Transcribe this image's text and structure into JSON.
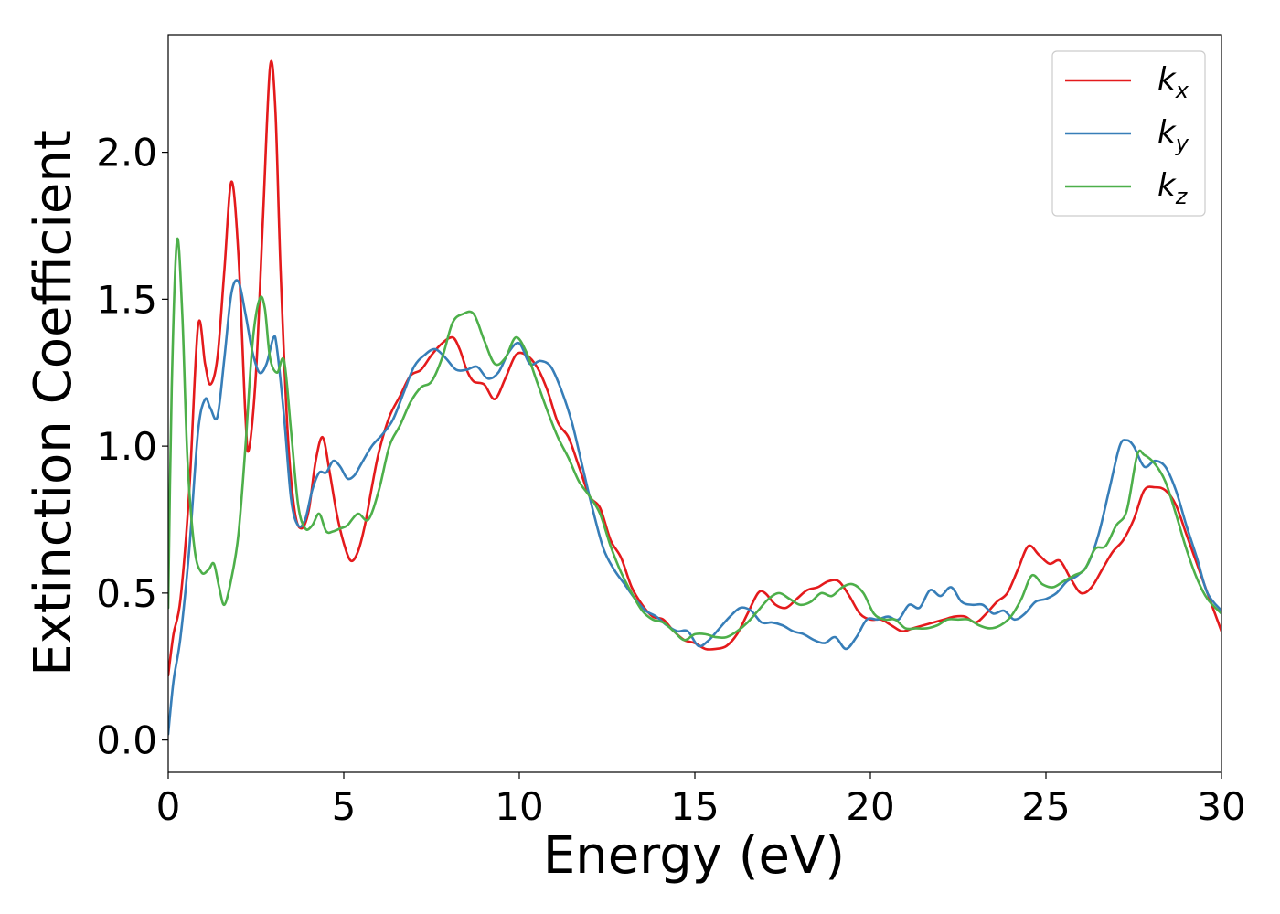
{
  "chart_data": {
    "type": "line",
    "title": "",
    "xlabel": "Energy (eV)",
    "ylabel": "Extinction Coefficient",
    "xlim": [
      0,
      30
    ],
    "ylim": [
      -0.11,
      2.4
    ],
    "xticks": [
      0,
      5,
      10,
      15,
      20,
      25,
      30
    ],
    "xtick_labels": [
      "0",
      "5",
      "10",
      "15",
      "20",
      "25",
      "30"
    ],
    "yticks": [
      0.0,
      0.5,
      1.0,
      1.5,
      2.0
    ],
    "ytick_labels": [
      "0.0",
      "0.5",
      "1.0",
      "1.5",
      "2.0"
    ],
    "grid": false,
    "legend_position": "top-right",
    "series": [
      {
        "name": "k",
        "subscript": "x",
        "color": "#e41a1c",
        "x": [
          0,
          0.15,
          0.35,
          0.6,
          0.85,
          1.05,
          1.2,
          1.4,
          1.6,
          1.8,
          2.0,
          2.2,
          2.3,
          2.5,
          2.7,
          2.9,
          3.05,
          3.2,
          3.4,
          3.6,
          3.8,
          4.0,
          4.2,
          4.4,
          4.6,
          4.8,
          5.0,
          5.2,
          5.4,
          5.6,
          5.8,
          6.0,
          6.3,
          6.6,
          6.9,
          7.2,
          7.5,
          7.8,
          8.1,
          8.3,
          8.5,
          8.7,
          9.0,
          9.3,
          9.6,
          9.9,
          10.2,
          10.5,
          10.8,
          11.1,
          11.4,
          11.7,
          12.0,
          12.3,
          12.6,
          12.9,
          13.2,
          13.5,
          13.8,
          14.1,
          14.4,
          14.7,
          15.0,
          15.3,
          15.6,
          15.9,
          16.2,
          16.5,
          16.8,
          17.0,
          17.3,
          17.6,
          17.9,
          18.2,
          18.5,
          18.8,
          19.1,
          19.4,
          19.7,
          20.0,
          20.3,
          20.6,
          20.9,
          21.2,
          21.5,
          21.8,
          22.1,
          22.4,
          22.7,
          23.0,
          23.3,
          23.6,
          23.9,
          24.2,
          24.5,
          24.8,
          25.1,
          25.4,
          25.7,
          26.0,
          26.3,
          26.6,
          26.9,
          27.2,
          27.5,
          27.8,
          28.1,
          28.4,
          28.7,
          29.0,
          29.3,
          29.6,
          30.0
        ],
        "values": [
          0.22,
          0.36,
          0.48,
          0.85,
          1.41,
          1.28,
          1.21,
          1.3,
          1.6,
          1.9,
          1.65,
          1.1,
          0.99,
          1.25,
          1.78,
          2.29,
          2.15,
          1.6,
          1.05,
          0.78,
          0.72,
          0.78,
          0.95,
          1.03,
          0.91,
          0.77,
          0.67,
          0.61,
          0.64,
          0.73,
          0.86,
          0.98,
          1.1,
          1.17,
          1.24,
          1.26,
          1.31,
          1.35,
          1.37,
          1.33,
          1.26,
          1.22,
          1.21,
          1.16,
          1.23,
          1.31,
          1.31,
          1.27,
          1.19,
          1.08,
          1.03,
          0.93,
          0.83,
          0.79,
          0.68,
          0.62,
          0.52,
          0.46,
          0.42,
          0.41,
          0.37,
          0.34,
          0.33,
          0.31,
          0.31,
          0.32,
          0.36,
          0.43,
          0.5,
          0.5,
          0.46,
          0.45,
          0.48,
          0.51,
          0.52,
          0.54,
          0.54,
          0.49,
          0.43,
          0.41,
          0.41,
          0.39,
          0.37,
          0.38,
          0.39,
          0.4,
          0.41,
          0.42,
          0.42,
          0.4,
          0.43,
          0.47,
          0.5,
          0.58,
          0.66,
          0.63,
          0.6,
          0.61,
          0.55,
          0.5,
          0.52,
          0.58,
          0.64,
          0.68,
          0.75,
          0.85,
          0.86,
          0.85,
          0.8,
          0.7,
          0.6,
          0.5,
          0.37
        ]
      },
      {
        "name": "k",
        "subscript": "y",
        "color": "#377eb8",
        "x": [
          0,
          0.15,
          0.35,
          0.6,
          0.85,
          1.05,
          1.2,
          1.4,
          1.6,
          1.8,
          2.0,
          2.2,
          2.4,
          2.6,
          2.8,
          3.0,
          3.1,
          3.3,
          3.5,
          3.7,
          3.9,
          4.1,
          4.3,
          4.5,
          4.7,
          4.9,
          5.1,
          5.3,
          5.5,
          5.8,
          6.1,
          6.4,
          6.7,
          7.0,
          7.3,
          7.6,
          7.9,
          8.2,
          8.5,
          8.8,
          9.1,
          9.4,
          9.7,
          10.0,
          10.3,
          10.6,
          10.9,
          11.2,
          11.5,
          11.8,
          12.1,
          12.4,
          12.7,
          13.0,
          13.3,
          13.6,
          13.9,
          14.2,
          14.5,
          14.8,
          15.1,
          15.4,
          15.7,
          16.0,
          16.3,
          16.6,
          16.9,
          17.2,
          17.5,
          17.8,
          18.1,
          18.4,
          18.7,
          19.0,
          19.3,
          19.6,
          19.9,
          20.2,
          20.5,
          20.8,
          21.1,
          21.4,
          21.7,
          22.0,
          22.3,
          22.6,
          22.9,
          23.2,
          23.5,
          23.8,
          24.1,
          24.4,
          24.7,
          25.0,
          25.3,
          25.6,
          25.9,
          26.2,
          26.5,
          26.8,
          27.1,
          27.3,
          27.5,
          27.8,
          28.1,
          28.4,
          28.7,
          29.0,
          29.3,
          29.6,
          30.0
        ],
        "values": [
          0.02,
          0.2,
          0.35,
          0.65,
          1.05,
          1.16,
          1.13,
          1.1,
          1.3,
          1.52,
          1.56,
          1.45,
          1.32,
          1.25,
          1.28,
          1.37,
          1.33,
          1.1,
          0.82,
          0.73,
          0.75,
          0.85,
          0.91,
          0.91,
          0.95,
          0.93,
          0.89,
          0.9,
          0.94,
          1.0,
          1.04,
          1.09,
          1.18,
          1.27,
          1.31,
          1.33,
          1.3,
          1.26,
          1.26,
          1.27,
          1.23,
          1.25,
          1.32,
          1.35,
          1.28,
          1.29,
          1.27,
          1.19,
          1.08,
          0.93,
          0.78,
          0.65,
          0.58,
          0.53,
          0.48,
          0.44,
          0.42,
          0.39,
          0.37,
          0.37,
          0.32,
          0.34,
          0.38,
          0.42,
          0.45,
          0.44,
          0.4,
          0.4,
          0.39,
          0.37,
          0.36,
          0.34,
          0.33,
          0.35,
          0.31,
          0.35,
          0.41,
          0.41,
          0.42,
          0.41,
          0.46,
          0.45,
          0.51,
          0.49,
          0.52,
          0.47,
          0.46,
          0.46,
          0.43,
          0.44,
          0.41,
          0.43,
          0.47,
          0.48,
          0.5,
          0.54,
          0.56,
          0.6,
          0.7,
          0.85,
          1.0,
          1.02,
          1.0,
          0.93,
          0.95,
          0.93,
          0.85,
          0.73,
          0.62,
          0.5,
          0.44
        ]
      },
      {
        "name": "k",
        "subscript": "z",
        "color": "#4daf4a",
        "x": [
          0,
          0.1,
          0.25,
          0.4,
          0.55,
          0.75,
          0.95,
          1.15,
          1.3,
          1.45,
          1.6,
          1.8,
          2.0,
          2.2,
          2.4,
          2.6,
          2.75,
          2.9,
          3.1,
          3.3,
          3.5,
          3.7,
          3.9,
          4.1,
          4.3,
          4.5,
          4.7,
          4.9,
          5.1,
          5.4,
          5.7,
          6.0,
          6.3,
          6.6,
          6.9,
          7.2,
          7.5,
          7.8,
          8.1,
          8.4,
          8.7,
          9.0,
          9.3,
          9.6,
          9.9,
          10.2,
          10.5,
          10.8,
          11.1,
          11.4,
          11.7,
          12.0,
          12.3,
          12.6,
          12.9,
          13.2,
          13.5,
          13.8,
          14.1,
          14.4,
          14.7,
          15.0,
          15.3,
          15.6,
          15.9,
          16.2,
          16.5,
          16.8,
          17.1,
          17.4,
          17.7,
          18.0,
          18.3,
          18.6,
          18.9,
          19.2,
          19.5,
          19.8,
          20.1,
          20.4,
          20.7,
          21.0,
          21.3,
          21.6,
          21.9,
          22.2,
          22.5,
          22.8,
          23.1,
          23.4,
          23.7,
          24.0,
          24.3,
          24.6,
          24.9,
          25.2,
          25.5,
          25.8,
          26.1,
          26.4,
          26.7,
          27.0,
          27.3,
          27.6,
          27.8,
          28.1,
          28.4,
          28.7,
          29.0,
          29.3,
          29.6,
          30.0
        ],
        "values": [
          0.45,
          1.2,
          1.7,
          1.45,
          0.95,
          0.65,
          0.57,
          0.58,
          0.6,
          0.52,
          0.46,
          0.55,
          0.7,
          1.0,
          1.35,
          1.5,
          1.47,
          1.3,
          1.25,
          1.29,
          1.05,
          0.8,
          0.72,
          0.73,
          0.77,
          0.71,
          0.71,
          0.72,
          0.73,
          0.77,
          0.75,
          0.85,
          1.0,
          1.07,
          1.15,
          1.2,
          1.22,
          1.3,
          1.42,
          1.45,
          1.45,
          1.36,
          1.28,
          1.3,
          1.37,
          1.32,
          1.22,
          1.12,
          1.03,
          0.96,
          0.88,
          0.83,
          0.77,
          0.66,
          0.57,
          0.5,
          0.44,
          0.41,
          0.4,
          0.37,
          0.34,
          0.36,
          0.36,
          0.35,
          0.35,
          0.37,
          0.4,
          0.44,
          0.48,
          0.5,
          0.48,
          0.46,
          0.47,
          0.5,
          0.49,
          0.52,
          0.53,
          0.5,
          0.43,
          0.41,
          0.41,
          0.38,
          0.38,
          0.38,
          0.39,
          0.41,
          0.41,
          0.41,
          0.39,
          0.38,
          0.39,
          0.42,
          0.48,
          0.56,
          0.53,
          0.52,
          0.54,
          0.56,
          0.58,
          0.65,
          0.66,
          0.73,
          0.78,
          0.97,
          0.97,
          0.94,
          0.88,
          0.77,
          0.65,
          0.55,
          0.48,
          0.43
        ]
      }
    ]
  }
}
